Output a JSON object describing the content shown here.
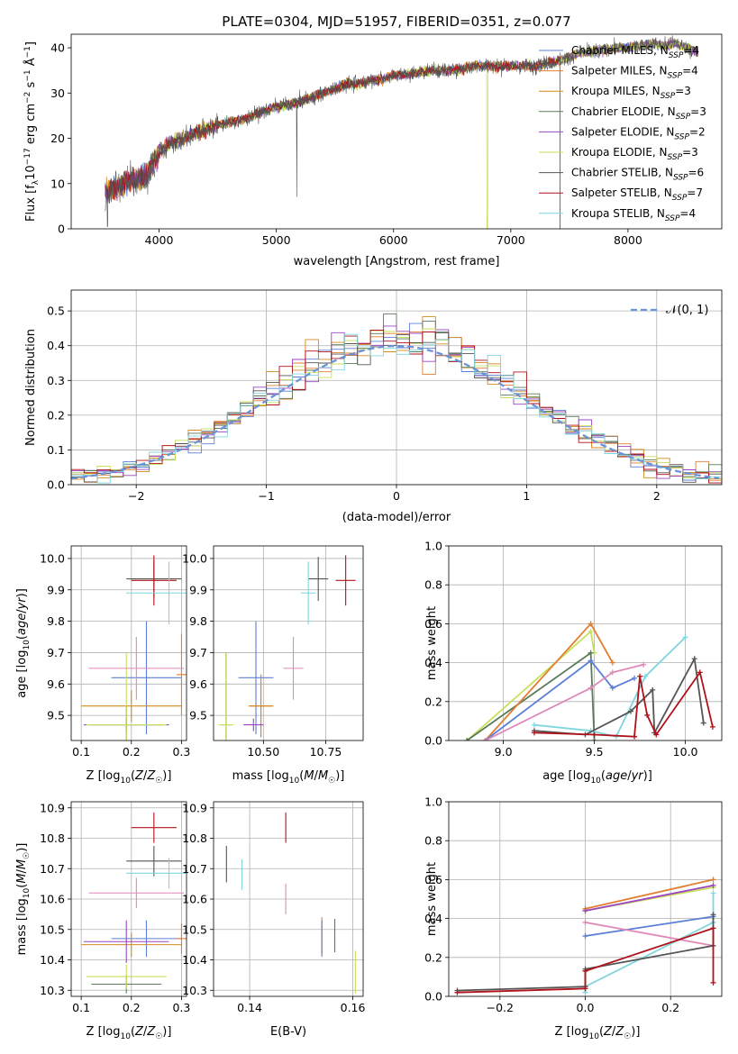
{
  "colors": {
    "Chabrier MILES": "#5b7fd6",
    "Salpeter MILES": "#e07e2f",
    "Kroupa MILES": "#d48a20",
    "Chabrier ELODIE": "#5a7a5a",
    "Salpeter ELODIE": "#9a45c2",
    "Kroupa ELODIE": "#c8df5a",
    "Chabrier STELIB": "#555555",
    "Salpeter STELIB": "#b0121b",
    "Kroupa STELIB": "#7fd6de",
    "pink": "#e088b8",
    "gaussian": "#6a93d8"
  },
  "chart_data": [
    {
      "id": "spectrum",
      "type": "line",
      "title": "PLATE=0304, MJD=51957, FIBERID=0351, z=0.077",
      "xlabel": "wavelength [Angstrom, rest frame]",
      "ylabel": "Flux [fλ10⁻¹⁷ erg cm⁻² s⁻¹ Å⁻¹]",
      "xlim": [
        3250,
        8800
      ],
      "ylim": [
        0,
        43
      ],
      "xticks": [
        4000,
        5000,
        6000,
        7000,
        8000
      ],
      "yticks": [
        0,
        10,
        20,
        30,
        40
      ],
      "x": [
        3550,
        3700,
        3800,
        3900,
        4000,
        4100,
        4200,
        4300,
        4400,
        4500,
        4600,
        4700,
        4800,
        4900,
        5000,
        5100,
        5200,
        5300,
        5400,
        5500,
        5600,
        5700,
        5800,
        5900,
        6000,
        6100,
        6200,
        6300,
        6400,
        6500,
        6600,
        6700,
        6800,
        6900,
        7000,
        7100,
        7200,
        7300,
        7400,
        7500,
        7600,
        7700,
        7800,
        7900,
        8000,
        8100,
        8200,
        8300,
        8400,
        8500,
        8600
      ],
      "flux": [
        8,
        10,
        11,
        12,
        17,
        19,
        20,
        21,
        22,
        23,
        23.5,
        24,
        25,
        26,
        27,
        27.5,
        28,
        29,
        30,
        31,
        32,
        32,
        33,
        33,
        34,
        34,
        34.5,
        35,
        35,
        35,
        35.5,
        36,
        36,
        36,
        36,
        36,
        36,
        36.5,
        37,
        38,
        39,
        39,
        39.5,
        40,
        40,
        40.5,
        41,
        40.5,
        41,
        40,
        39
      ],
      "legend": [
        "Chabrier MILES, N_SSP=4",
        "Salpeter MILES, N_SSP=4",
        "Kroupa MILES, N_SSP=3",
        "Chabrier ELODIE, N_SSP=3",
        "Salpeter ELODIE, N_SSP=2",
        "Kroupa ELODIE, N_SSP=3",
        "Chabrier STELIB, N_SSP=6",
        "Salpeter STELIB, N_SSP=7",
        "Kroupa STELIB, N_SSP=4"
      ],
      "legend_placement": "right",
      "grid": false
    },
    {
      "id": "residuals",
      "type": "area",
      "xlabel": "(data-model)/error",
      "ylabel": "Normed distribution",
      "xlim": [
        -2.5,
        2.5
      ],
      "ylim": [
        0,
        0.56
      ],
      "xticks": [
        -2,
        -1,
        0,
        1,
        2
      ],
      "yticks": [
        0.0,
        0.1,
        0.2,
        0.3,
        0.4,
        0.5
      ],
      "gaussian_label": "𝒩(0, 1)",
      "legend_placement": "upper right",
      "grid": true
    },
    {
      "id": "age_vs_Z",
      "type": "scatter",
      "xlabel": "Z [log10(Z/Z☉)]",
      "ylabel": "age  [log10(age/yr)]",
      "xlim": [
        0.08,
        0.31
      ],
      "ylim": [
        9.42,
        10.04
      ],
      "xticks": [
        0.1,
        0.2,
        0.3
      ],
      "yticks": [
        9.5,
        9.6,
        9.7,
        9.8,
        9.9,
        10.0
      ],
      "grid": true
    },
    {
      "id": "age_vs_mass",
      "type": "scatter",
      "xlabel": "mass [log10(M/M☉)]",
      "xlim": [
        10.3,
        10.9
      ],
      "ylim": [
        9.42,
        10.04
      ],
      "xticks": [
        10.5,
        10.75
      ],
      "yticks": [
        9.5,
        9.6,
        9.7,
        9.8,
        9.9,
        10.0
      ],
      "grid": true
    },
    {
      "id": "weight_vs_age",
      "type": "line",
      "xlabel": "age  [log10(age/yr)]",
      "ylabel": "mass weight",
      "xlim": [
        8.7,
        10.2
      ],
      "ylim": [
        0,
        1
      ],
      "xticks": [
        9.0,
        9.5,
        10.0
      ],
      "yticks": [
        0.0,
        0.2,
        0.4,
        0.6,
        0.8,
        1.0
      ],
      "grid": true
    },
    {
      "id": "mass_vs_Z",
      "type": "scatter",
      "xlabel": "Z [log10(Z/Z☉)]",
      "ylabel": "mass [log10(M/M☉)]",
      "xlim": [
        0.08,
        0.31
      ],
      "ylim": [
        10.28,
        10.92
      ],
      "xticks": [
        0.1,
        0.2,
        0.3
      ],
      "yticks": [
        10.3,
        10.4,
        10.5,
        10.6,
        10.7,
        10.8,
        10.9
      ],
      "grid": true
    },
    {
      "id": "mass_vs_ebv",
      "type": "scatter",
      "xlabel": "E(B-V)",
      "xlim": [
        0.133,
        0.162
      ],
      "ylim": [
        10.28,
        10.92
      ],
      "xticks": [
        0.14,
        0.16
      ],
      "yticks": [
        10.3,
        10.4,
        10.5,
        10.6,
        10.7,
        10.8,
        10.9
      ],
      "grid": true
    },
    {
      "id": "weight_vs_Z",
      "type": "line",
      "xlabel": "Z [log10(Z/Z☉)]",
      "ylabel": "mass weight",
      "xlim": [
        -0.32,
        0.32
      ],
      "ylim": [
        0,
        1
      ],
      "xticks": [
        -0.2,
        0.0,
        0.2
      ],
      "yticks": [
        0.0,
        0.2,
        0.4,
        0.6,
        0.8,
        1.0
      ],
      "grid": true
    }
  ]
}
